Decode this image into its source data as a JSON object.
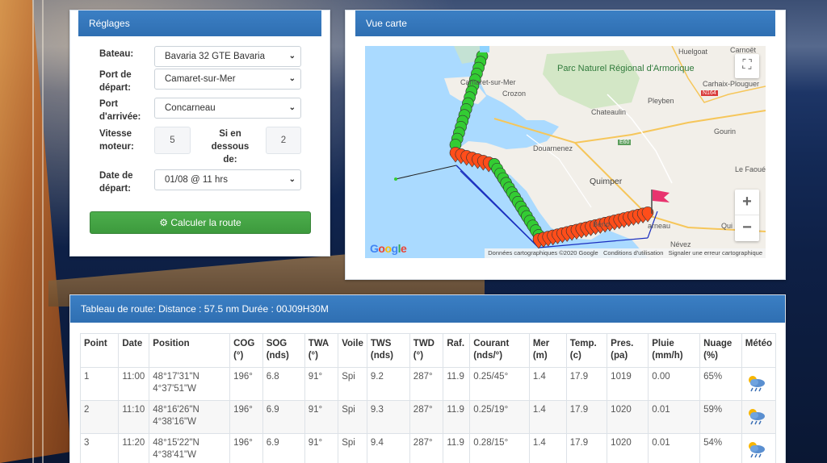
{
  "settings": {
    "title": "Réglages",
    "boat_label": "Bateau:",
    "boat_value": "Bavaria 32 GTE Bavaria",
    "departure_port_label": "Port de départ:",
    "departure_port_value": "Camaret-sur-Mer",
    "arrival_port_label": "Port d'arrivée:",
    "arrival_port_value": "Concarneau",
    "engine_speed_label": "Vitesse moteur:",
    "engine_speed_value": "5",
    "below_label": "Si en dessous de:",
    "below_value": "2",
    "departure_date_label": "Date de départ:",
    "departure_date_value": "01/08 @ 11 hrs",
    "calc_button": "Calculer la route"
  },
  "map": {
    "title": "Vue carte",
    "labels": {
      "huelgoat": "Huelgoat",
      "carnoet": "Carnoët",
      "park": "Parc Naturel Régional d'Armorique",
      "carhaix": "Carhaix-Plouguer",
      "camaret": "Camaret-sur-Mer",
      "crozon": "Crozon",
      "pleyben": "Pleyben",
      "chateaulin": "Chateaulin",
      "gourin": "Gourin",
      "douarnenez": "Douarnenez",
      "e60": "E60",
      "n164": "N164",
      "le_faoue": "Le Faoué",
      "quimper": "Quimper",
      "benodet": "Béno",
      "concarneau": "arneau",
      "nevez": "Névez",
      "quim": "Qui"
    },
    "footer": {
      "data": "Données cartographiques ©2020 Google",
      "terms": "Conditions d'utilisation",
      "report": "Signaler une erreur cartographique"
    },
    "google": "Google",
    "zoom_in": "+",
    "zoom_out": "−"
  },
  "route": {
    "title": "Tableau de route: Distance : 57.5 nm Durée : 00J09H30M",
    "headers": {
      "point": "Point",
      "date": "Date",
      "position": "Position",
      "cog_1": "COG",
      "cog_2": "(°)",
      "sog_1": "SOG",
      "sog_2": "(nds)",
      "twa_1": "TWA",
      "twa_2": "(°)",
      "voile": "Voile",
      "tws_1": "TWS",
      "tws_2": "(nds)",
      "twd_1": "TWD",
      "twd_2": "(°)",
      "raf": "Raf.",
      "courant_1": "Courant",
      "courant_2": "(nds/°)",
      "mer_1": "Mer",
      "mer_2": "(m)",
      "temp_1": "Temp.",
      "temp_2": "(c)",
      "pres_1": "Pres.",
      "pres_2": "(pa)",
      "pluie_1": "Pluie",
      "pluie_2": "(mm/h)",
      "nuage_1": "Nuage",
      "nuage_2": "(%)",
      "meteo": "Météo"
    },
    "rows": [
      {
        "point": "1",
        "date": "11:00",
        "lat": "48°17'31\"N",
        "lon": "4°37'51\"W",
        "cog": "196°",
        "sog": "6.8",
        "twa": "91°",
        "voile": "Spi",
        "tws": "9.2",
        "twd": "287°",
        "raf": "11.9",
        "courant": "0.25/45°",
        "mer": "1.4",
        "temp": "17.9",
        "pres": "1019",
        "pluie": "0.00",
        "nuage": "65%",
        "icon": "cloud-sun-rain-icon"
      },
      {
        "point": "2",
        "date": "11:10",
        "lat": "48°16'26\"N",
        "lon": "4°38'16\"W",
        "cog": "196°",
        "sog": "6.9",
        "twa": "91°",
        "voile": "Spi",
        "tws": "9.3",
        "twd": "287°",
        "raf": "11.9",
        "courant": "0.25/19°",
        "mer": "1.4",
        "temp": "17.9",
        "pres": "1020",
        "pluie": "0.01",
        "nuage": "59%",
        "icon": "cloud-sun-rain-icon"
      },
      {
        "point": "3",
        "date": "11:20",
        "lat": "48°15'22\"N",
        "lon": "4°38'41\"W",
        "cog": "196°",
        "sog": "6.9",
        "twa": "91°",
        "voile": "Spi",
        "tws": "9.4",
        "twd": "287°",
        "raf": "11.9",
        "courant": "0.28/15°",
        "mer": "1.4",
        "temp": "17.9",
        "pres": "1020",
        "pluie": "0.01",
        "nuage": "54%",
        "icon": "cloud-sun-rain-icon"
      }
    ]
  },
  "colors": {
    "header_blue": "#3b7fc4",
    "button_green": "#4cae4c",
    "route_green": "#33cc33",
    "route_orange": "#ff4d1a",
    "flag_pink": "#e8336e",
    "sea": "#aadaff",
    "land": "#f2efe9"
  }
}
